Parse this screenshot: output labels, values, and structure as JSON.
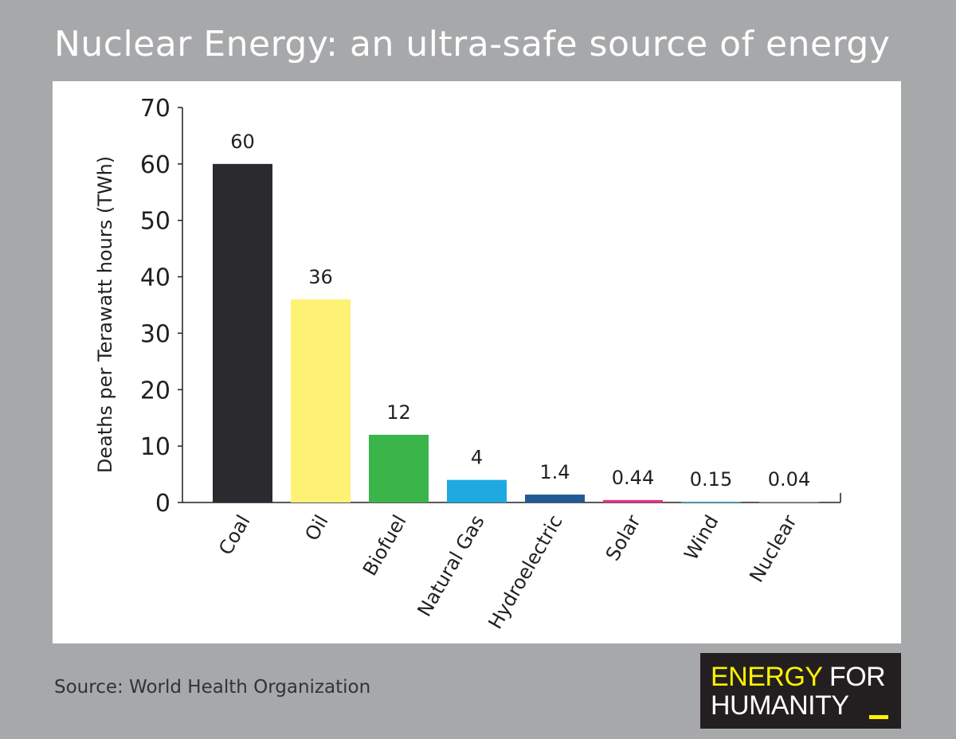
{
  "title": "Nuclear Energy: an ultra-safe source of energy",
  "source": "Source: World Health Organization",
  "logo": {
    "word1": "ENERGY",
    "word2": "FOR",
    "word3": "HUMANITY",
    "colors": {
      "highlight": "#fef200",
      "background": "#231f20"
    }
  },
  "chart_data": {
    "type": "bar",
    "title": "Nuclear Energy: an ultra-safe source of energy",
    "xlabel": "",
    "ylabel": "Deaths per Terawatt hours (TWh)",
    "ylim": [
      0,
      70
    ],
    "yticks": [
      0,
      10,
      20,
      30,
      40,
      50,
      60,
      70
    ],
    "grid": false,
    "categories": [
      "Coal",
      "Oil",
      "Biofuel",
      "Natural Gas",
      "Hydroelectric",
      "Solar",
      "Wind",
      "Nuclear"
    ],
    "values": [
      60,
      36,
      12,
      4,
      1.4,
      0.44,
      0.15,
      0.04
    ],
    "value_labels": [
      "60",
      "36",
      "12",
      "4",
      "1.4",
      "0.44",
      "0.15",
      "0.04"
    ],
    "colors": [
      "#2b2b2f",
      "#fdf274",
      "#3ab54a",
      "#1fa9e1",
      "#215a95",
      "#e6338a",
      "#4ecbe8",
      "#aaaaaa"
    ]
  }
}
